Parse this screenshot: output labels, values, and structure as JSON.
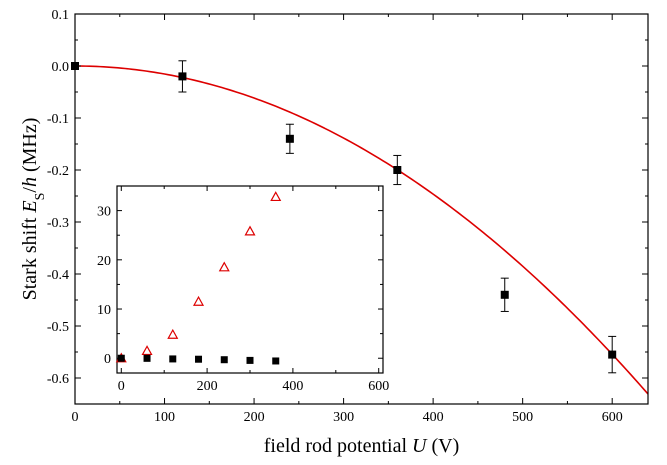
{
  "chart_data": [
    {
      "id": "main",
      "type": "scatter",
      "xlabel": {
        "prefix": "field rod potential ",
        "italic": "U",
        "suffix": " (V)"
      },
      "ylabel": {
        "prefix": "Stark shift ",
        "italic": "E",
        "sub": "S",
        "slash": "/",
        "italic2": "h",
        "suffix": " (MHz)"
      },
      "xlim": [
        0,
        640
      ],
      "ylim": [
        -0.65,
        0.1
      ],
      "xticks": [
        "0",
        "100",
        "200",
        "300",
        "400",
        "500",
        "600"
      ],
      "xtick_values": [
        0,
        100,
        200,
        300,
        400,
        500,
        600
      ],
      "yticks": [
        "0.1",
        "0.0",
        "-0.1",
        "-0.2",
        "-0.3",
        "-0.4",
        "-0.5",
        "-0.6"
      ],
      "ytick_values": [
        0.1,
        0.0,
        -0.1,
        -0.2,
        -0.3,
        -0.4,
        -0.5,
        -0.6
      ],
      "series": [
        {
          "marker": "filled-square",
          "color": "#000000",
          "x": [
            0,
            120,
            240,
            360,
            480,
            600
          ],
          "y": [
            0.0,
            -0.02,
            -0.14,
            -0.2,
            -0.44,
            -0.555
          ],
          "yerr": [
            0.0,
            0.03,
            0.028,
            0.028,
            0.032,
            0.035
          ]
        }
      ],
      "fit": {
        "color": "#dd0000",
        "model": "quadratic",
        "coefficient": -1.54e-06
      }
    },
    {
      "id": "inset",
      "type": "scatter",
      "xlim": [
        -10,
        610
      ],
      "ylim": [
        -3,
        35
      ],
      "xticks": [
        "0",
        "200",
        "400",
        "600"
      ],
      "xtick_values": [
        0,
        200,
        400,
        600
      ],
      "yticks": [
        "0",
        "10",
        "20",
        "30"
      ],
      "ytick_values": [
        0,
        10,
        20,
        30
      ],
      "series": [
        {
          "marker": "open-triangle",
          "color": "#dd0000",
          "x": [
            0,
            60,
            120,
            180,
            240,
            300,
            360
          ],
          "y": [
            0,
            1.5,
            4.8,
            11.5,
            18.5,
            25.8,
            32.8
          ]
        },
        {
          "marker": "filled-square",
          "color": "#000000",
          "x": [
            0,
            60,
            120,
            180,
            240,
            300,
            360
          ],
          "y": [
            0,
            -0.02,
            -0.14,
            -0.2,
            -0.3,
            -0.44,
            -0.555
          ]
        }
      ]
    }
  ]
}
